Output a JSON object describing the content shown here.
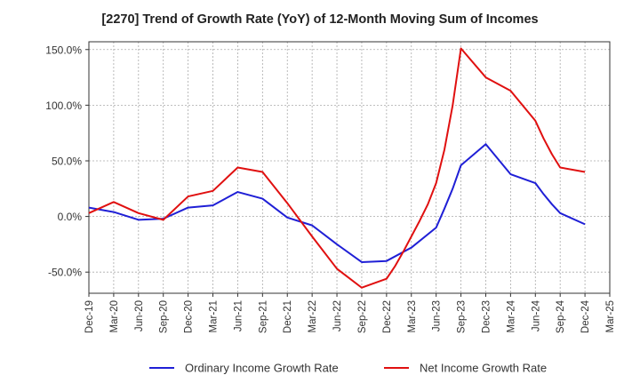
{
  "chart_data": {
    "type": "line",
    "title": "[2270]  Trend of Growth Rate (YoY) of 12-Month Moving Sum of Incomes",
    "xlabel": "",
    "ylabel": "",
    "x": [
      "Dec-19",
      "Mar-20",
      "Jun-20",
      "Sep-20",
      "Dec-20",
      "Mar-21",
      "Jun-21",
      "Sep-21",
      "Dec-21",
      "Mar-22",
      "Jun-22",
      "Sep-22",
      "Dec-22",
      "Mar-23",
      "Jun-23",
      "Sep-23",
      "Dec-23",
      "Mar-24",
      "Jun-24",
      "Sep-24",
      "Dec-24",
      "Mar-25"
    ],
    "x_ticks": [
      "Dec-19",
      "Mar-20",
      "Jun-20",
      "Sep-20",
      "Dec-20",
      "Mar-21",
      "Jun-21",
      "Sep-21",
      "Dec-21",
      "Mar-22",
      "Jun-22",
      "Sep-22",
      "Dec-22",
      "Mar-23",
      "Jun-23",
      "Sep-23",
      "Dec-23",
      "Mar-24",
      "Jun-24",
      "Sep-24",
      "Dec-24",
      "Mar-25"
    ],
    "y_ticks": [
      150,
      100,
      50,
      0,
      -50
    ],
    "y_tick_labels": [
      "150.0%",
      "100.0%",
      "50.0%",
      "0.0%",
      "-50.0%"
    ],
    "ylim": [
      -69,
      157
    ],
    "grid": true,
    "legend_position": "bottom",
    "series": [
      {
        "name": "Ordinary Income Growth Rate",
        "color": "#1f1fd6",
        "points": [
          [
            "Dec-19",
            8
          ],
          [
            "Mar-20",
            4
          ],
          [
            "Jun-20",
            -3
          ],
          [
            "Sep-20",
            -2
          ],
          [
            "Dec-20",
            8
          ],
          [
            "Mar-21",
            10
          ],
          [
            "Jun-21",
            22
          ],
          [
            "Sep-21",
            16
          ],
          [
            "Dec-21",
            -1
          ],
          [
            "Mar-22",
            -8
          ],
          [
            "Jun-22",
            -25
          ],
          [
            "Sep-22",
            -41
          ],
          [
            "Dec-22",
            -40
          ],
          [
            "Mar-23",
            -28
          ],
          [
            "Jun-23",
            -10
          ],
          [
            "Jul-23",
            7
          ],
          [
            "Aug-23",
            25
          ],
          [
            "Sep-23",
            46
          ],
          [
            "Dec-23",
            65
          ],
          [
            "Mar-24",
            38
          ],
          [
            "Jun-24",
            30
          ],
          [
            "Jul-24",
            20
          ],
          [
            "Aug-24",
            11
          ],
          [
            "Sep-24",
            3
          ],
          [
            "Dec-24",
            -7
          ]
        ]
      },
      {
        "name": "Net Income Growth Rate",
        "color": "#e01010",
        "points": [
          [
            "Dec-19",
            3
          ],
          [
            "Mar-20",
            13
          ],
          [
            "Jun-20",
            3
          ],
          [
            "Sep-20",
            -3
          ],
          [
            "Dec-20",
            18
          ],
          [
            "Mar-21",
            23
          ],
          [
            "Jun-21",
            44
          ],
          [
            "Sep-21",
            40
          ],
          [
            "Dec-21",
            12
          ],
          [
            "Mar-22",
            -18
          ],
          [
            "Jun-22",
            -47
          ],
          [
            "Sep-22",
            -64
          ],
          [
            "Dec-22",
            -56
          ],
          [
            "Jan-23",
            -45
          ],
          [
            "Feb-23",
            -32
          ],
          [
            "Mar-23",
            -18
          ],
          [
            "Apr-23",
            -4
          ],
          [
            "May-23",
            11
          ],
          [
            "Jun-23",
            30
          ],
          [
            "Jul-23",
            60
          ],
          [
            "Aug-23",
            100
          ],
          [
            "Sep-23",
            151
          ],
          [
            "Dec-23",
            125
          ],
          [
            "Mar-24",
            113
          ],
          [
            "Jun-24",
            86
          ],
          [
            "Jul-24",
            70
          ],
          [
            "Aug-24",
            56
          ],
          [
            "Sep-24",
            44
          ],
          [
            "Dec-24",
            40
          ]
        ]
      }
    ]
  }
}
